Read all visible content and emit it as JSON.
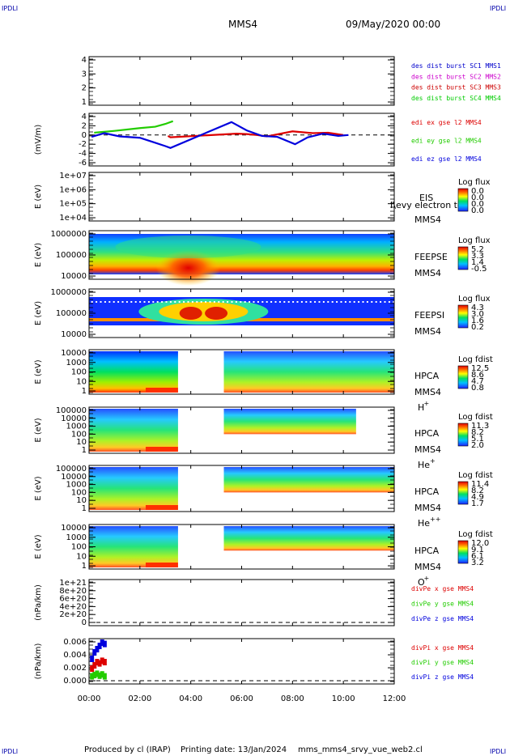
{
  "header": {
    "corner_tl": "IPDLI",
    "corner_tr": "IPDLI",
    "corner_bl": "IPDLI",
    "corner_br": "IPDLI",
    "title": "MMS4",
    "date": "09/May/2020 00:00"
  },
  "footer": {
    "produced": "Produced by cl (IRAP)",
    "printing": "Printing date: 13/Jan/2024",
    "file": "mms_mms4_srvy_vue_web2.cl"
  },
  "colors": {
    "mms1": "#0000cc",
    "mms2": "#cc00cc",
    "mms3": "#cc0000",
    "mms4": "#00cc00",
    "red": "#dd0000",
    "green": "#22cc00",
    "blue": "#0000dd"
  },
  "chart_data": [
    {
      "type": "line",
      "ylim": [
        0.5,
        4.5
      ],
      "yticks": [
        "4",
        "3",
        "2",
        "1"
      ],
      "series": [
        {
          "name": "des dist burst SC1 MMS1",
          "values": []
        },
        {
          "name": "des dist burst SC2 MMS2",
          "values": []
        },
        {
          "name": "des dist burst SC3 MMS3",
          "values": []
        },
        {
          "name": "des dist burst SC4 MMS4",
          "values": []
        }
      ]
    },
    {
      "type": "line",
      "ylabel": "(mV/m)",
      "ylim": [
        -7,
        5
      ],
      "yticks": [
        "4",
        "2",
        "0",
        "-2",
        "-4",
        "-6"
      ],
      "series": [
        {
          "name": "edi ex gse l2 MMS4",
          "x": [
            3.1,
            3.2,
            5.8,
            6.2,
            6.6,
            7.0,
            8.0,
            8.8,
            9.4,
            10.0
          ],
          "values": [
            -0.2,
            -0.5,
            0.3,
            0.2,
            0.0,
            -0.3,
            0.8,
            0.4,
            0.5,
            0.0
          ]
        },
        {
          "name": "edi ey gse l2 MMS4",
          "x": [
            0.2,
            1.0,
            2.0,
            2.6,
            3.0,
            3.3
          ],
          "values": [
            0.5,
            0.9,
            1.5,
            1.8,
            2.4,
            3.0
          ]
        },
        {
          "name": "edi ez gse l2 MMS4",
          "x": [
            0.1,
            0.6,
            1.2,
            2.0,
            2.5,
            3.0,
            3.2,
            5.6,
            6.2,
            6.8,
            7.4,
            8.1,
            8.6,
            9.2,
            9.8,
            10.2
          ],
          "values": [
            -0.4,
            0.4,
            -0.3,
            -0.6,
            -1.5,
            -2.4,
            -2.8,
            2.8,
            1.0,
            -0.2,
            -0.4,
            -2.0,
            -0.5,
            0.3,
            -0.2,
            0.0
          ]
        }
      ]
    },
    {
      "type": "heatmap",
      "ylabel": "E (eV)",
      "yticks": [
        "1e+07",
        "1e+06",
        "1e+05",
        "1e+04"
      ],
      "label": "EIS",
      "sublabel": "MMS4",
      "overlay_text": "I\\evy electron to",
      "cbar_title": "Log flux",
      "cbar_ticks": [
        "0.0",
        "0.0",
        "0.0",
        "0.0"
      ]
    },
    {
      "type": "heatmap",
      "ylabel": "E (eV)",
      "yticks": [
        "1000000",
        "100000",
        "10000"
      ],
      "label": "FEEPSE",
      "sublabel": "MMS4",
      "cbar_title": "Log flux",
      "cbar_ticks": [
        "5.2",
        "3.3",
        "1.4",
        "-0.5"
      ]
    },
    {
      "type": "heatmap",
      "ylabel": "E (eV)",
      "yticks": [
        "1000000",
        "100000",
        "10000"
      ],
      "label": "FEEPSI",
      "sublabel": "MMS4",
      "cbar_title": "Log flux",
      "cbar_ticks": [
        "4.3",
        "3.0",
        "1.6",
        "0.2"
      ]
    },
    {
      "type": "heatmap",
      "ylabel": "E (eV)",
      "yticks": [
        "10000",
        "1000",
        "100",
        "10",
        "1"
      ],
      "label": "HPCA",
      "sublabel": "MMS4",
      "species": "H",
      "species_sup": "+",
      "cbar_title": "Log fdist",
      "cbar_ticks": [
        "12.5",
        "8.6",
        "4.7",
        "0.8"
      ],
      "gap_hours": [
        3.5,
        5.3
      ]
    },
    {
      "type": "heatmap",
      "ylabel": "E (eV)",
      "yticks": [
        "100000",
        "10000",
        "1000",
        "100",
        "10",
        "1"
      ],
      "label": "HPCA",
      "sublabel": "MMS4",
      "species": "He",
      "species_sup": "+",
      "cbar_title": "Log fdist",
      "cbar_ticks": [
        "11.3",
        "8.2",
        "5.1",
        "2.0"
      ],
      "gap_hours": [
        3.5,
        5.3
      ]
    },
    {
      "type": "heatmap",
      "ylabel": "E (eV)",
      "yticks": [
        "100000",
        "10000",
        "1000",
        "100",
        "10",
        "1"
      ],
      "label": "HPCA",
      "sublabel": "MMS4",
      "species": "He",
      "species_sup": "++",
      "cbar_title": "Log fdist",
      "cbar_ticks": [
        "11.4",
        "8.2",
        "4.9",
        "1.7"
      ],
      "gap_hours": [
        3.5,
        5.3
      ]
    },
    {
      "type": "heatmap",
      "ylabel": "E (eV)",
      "yticks": [
        "10000",
        "1000",
        "100",
        "10",
        "1"
      ],
      "label": "HPCA",
      "sublabel": "MMS4",
      "species": "O",
      "species_sup": "+",
      "cbar_title": "Log fdist",
      "cbar_ticks": [
        "12.0",
        "9.1",
        "6.1",
        "3.2"
      ],
      "gap_hours": [
        3.5,
        5.3
      ]
    },
    {
      "type": "line",
      "ylabel": "(nPa/km)",
      "ylim": [
        0,
        1.1e+21
      ],
      "yticks": [
        "1e+21",
        "8e+20",
        "6e+20",
        "4e+20",
        "2e+20",
        "0"
      ],
      "series": [
        {
          "name": "divPe x gse MMS4",
          "values": []
        },
        {
          "name": "divPe y gse MMS4",
          "values": []
        },
        {
          "name": "divPe z gse MMS4",
          "values": []
        }
      ]
    },
    {
      "type": "line",
      "ylabel": "(nPa/km)",
      "ylim": [
        -0.001,
        0.007
      ],
      "yticks": [
        "0.006",
        "0.004",
        "0.002",
        "0.000"
      ],
      "series": [
        {
          "name": "divPi x gse MMS4",
          "x": [
            0.1,
            0.2,
            0.3,
            0.4,
            0.5,
            0.6
          ],
          "values": [
            0.002,
            0.0025,
            0.003,
            0.0028,
            0.0032,
            0.003
          ]
        },
        {
          "name": "divPi y gse MMS4",
          "x": [
            0.1,
            0.2,
            0.3,
            0.4,
            0.5,
            0.6
          ],
          "values": [
            0.0008,
            0.001,
            0.0012,
            0.0009,
            0.0011,
            0.0008
          ]
        },
        {
          "name": "divPi z gse MMS4",
          "x": [
            0.1,
            0.2,
            0.3,
            0.4,
            0.5,
            0.6
          ],
          "values": [
            0.0035,
            0.0045,
            0.005,
            0.0055,
            0.006,
            0.0058
          ]
        }
      ]
    }
  ],
  "xaxis": {
    "ticks": [
      "00:00",
      "02:00",
      "04:00",
      "06:00",
      "08:00",
      "10:00",
      "12:00"
    ],
    "xlim": [
      0,
      12
    ]
  }
}
